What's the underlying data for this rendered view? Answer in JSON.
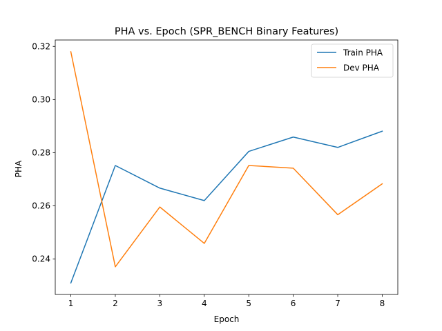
{
  "chart_data": {
    "type": "line",
    "title": "PHA vs. Epoch (SPR_BENCH Binary Features)",
    "xlabel": "Epoch",
    "ylabel": "PHA",
    "x": [
      1,
      2,
      3,
      4,
      5,
      6,
      7,
      8
    ],
    "xticks": [
      "1",
      "2",
      "3",
      "4",
      "5",
      "6",
      "7",
      "8"
    ],
    "yticks": [
      "0.24",
      "0.26",
      "0.28",
      "0.30",
      "0.32"
    ],
    "xlim": [
      0.65,
      8.35
    ],
    "ylim": [
      0.2267,
      0.3224
    ],
    "series": [
      {
        "name": "Train PHA",
        "color": "#1f77b4",
        "values": [
          0.231,
          0.2752,
          0.2667,
          0.262,
          0.2805,
          0.2859,
          0.282,
          0.2881
        ]
      },
      {
        "name": "Dev PHA",
        "color": "#ff7f0e",
        "values": [
          0.318,
          0.2371,
          0.2596,
          0.2459,
          0.2752,
          0.2742,
          0.2567,
          0.2683
        ]
      }
    ],
    "grid": false,
    "legend": "top-right"
  }
}
